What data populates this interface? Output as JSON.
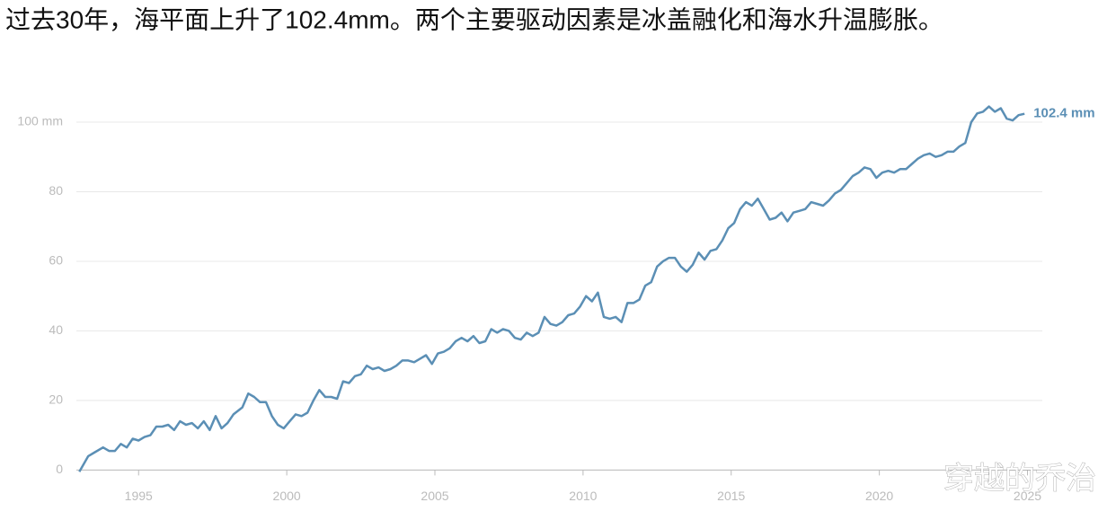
{
  "chart_data": {
    "type": "line",
    "title": "过去30年，海平面上升了102.4mm。两个主要驱动因素是冰盖融化和海水升温膨胀。",
    "annotation": "102.4 mm",
    "watermark": "穿越的乔治",
    "x": [
      1993.0,
      1993.3,
      1993.5,
      1993.8,
      1994.0,
      1994.2,
      1994.4,
      1994.6,
      1994.8,
      1995.0,
      1995.2,
      1995.4,
      1995.6,
      1995.8,
      1996.0,
      1996.2,
      1996.4,
      1996.6,
      1996.8,
      1997.0,
      1997.2,
      1997.4,
      1997.6,
      1997.8,
      1998.0,
      1998.2,
      1998.5,
      1998.7,
      1998.9,
      1999.1,
      1999.3,
      1999.5,
      1999.7,
      1999.9,
      2000.1,
      2000.3,
      2000.5,
      2000.7,
      2000.9,
      2001.1,
      2001.3,
      2001.5,
      2001.7,
      2001.9,
      2002.1,
      2002.3,
      2002.5,
      2002.7,
      2002.9,
      2003.1,
      2003.3,
      2003.5,
      2003.7,
      2003.9,
      2004.1,
      2004.3,
      2004.5,
      2004.7,
      2004.9,
      2005.1,
      2005.3,
      2005.5,
      2005.7,
      2005.9,
      2006.1,
      2006.3,
      2006.5,
      2006.7,
      2006.9,
      2007.1,
      2007.3,
      2007.5,
      2007.7,
      2007.9,
      2008.1,
      2008.3,
      2008.5,
      2008.7,
      2008.9,
      2009.1,
      2009.3,
      2009.5,
      2009.7,
      2009.9,
      2010.1,
      2010.3,
      2010.5,
      2010.7,
      2010.9,
      2011.1,
      2011.3,
      2011.5,
      2011.7,
      2011.9,
      2012.1,
      2012.3,
      2012.5,
      2012.7,
      2012.9,
      2013.1,
      2013.3,
      2013.5,
      2013.7,
      2013.9,
      2014.1,
      2014.3,
      2014.5,
      2014.7,
      2014.9,
      2015.1,
      2015.3,
      2015.5,
      2015.7,
      2015.9,
      2016.1,
      2016.3,
      2016.5,
      2016.7,
      2016.9,
      2017.1,
      2017.3,
      2017.5,
      2017.7,
      2017.9,
      2018.1,
      2018.3,
      2018.5,
      2018.7,
      2018.9,
      2019.1,
      2019.3,
      2019.5,
      2019.7,
      2019.9,
      2020.1,
      2020.3,
      2020.5,
      2020.7,
      2020.9,
      2021.1,
      2021.3,
      2021.5,
      2021.7,
      2021.9,
      2022.1,
      2022.3,
      2022.5,
      2022.7,
      2022.9,
      2023.1,
      2023.3,
      2023.5,
      2023.7,
      2023.9,
      2024.1,
      2024.3,
      2024.5,
      2024.7,
      2024.9
    ],
    "series": [
      {
        "color": "#5b8fb5",
        "values": [
          -0.5,
          4,
          5,
          6.5,
          5.5,
          5.5,
          7.5,
          6.5,
          9,
          8.5,
          9.5,
          10,
          12.5,
          12.5,
          13,
          11.5,
          14,
          13,
          13.5,
          12,
          14,
          11.5,
          15.5,
          12,
          13.5,
          16,
          18,
          22,
          21,
          19.5,
          19.5,
          15.5,
          13,
          12,
          14,
          16,
          15.5,
          16.5,
          20,
          23,
          21,
          21,
          20.5,
          25.5,
          25,
          27,
          27.5,
          30,
          29,
          29.5,
          28.5,
          29,
          30,
          31.5,
          31.5,
          31,
          32,
          33,
          30.5,
          33.5,
          34,
          35,
          37,
          38,
          37,
          38.5,
          36.5,
          37,
          40.5,
          39.5,
          40.5,
          40,
          38,
          37.5,
          39.5,
          38.5,
          39.5,
          44,
          42,
          41.5,
          42.5,
          44.5,
          45,
          47,
          50,
          48.5,
          51,
          44,
          43.5,
          44,
          42.5,
          48,
          48,
          49,
          53,
          54,
          58.5,
          60,
          61,
          61,
          58.5,
          57,
          59,
          62.5,
          60.5,
          63,
          63.5,
          66,
          69.5,
          71,
          75,
          77,
          76,
          78,
          75,
          72,
          72.5,
          74,
          71.5,
          74,
          74.5,
          75,
          77,
          76.5,
          76,
          77.5,
          79.5,
          80.5,
          82.5,
          84.5,
          85.5,
          87,
          86.5,
          84,
          85.5,
          86,
          85.5,
          86.5,
          86.5,
          88,
          89.5,
          90.5,
          91,
          90,
          90.5,
          91.5,
          91.5,
          93,
          94,
          100,
          102.5,
          103,
          104.5,
          103,
          104,
          101,
          100.5,
          102,
          102.4
        ]
      }
    ],
    "xlim": [
      1992.9,
      2025.5
    ],
    "xticks": [
      1995,
      2000,
      2005,
      2010,
      2015,
      2020,
      2025
    ],
    "ylim": [
      -3,
      108
    ],
    "yticks": [
      0,
      20,
      40,
      60,
      80,
      {
        "value": 100,
        "label": "100 mm"
      }
    ],
    "grid": true
  }
}
